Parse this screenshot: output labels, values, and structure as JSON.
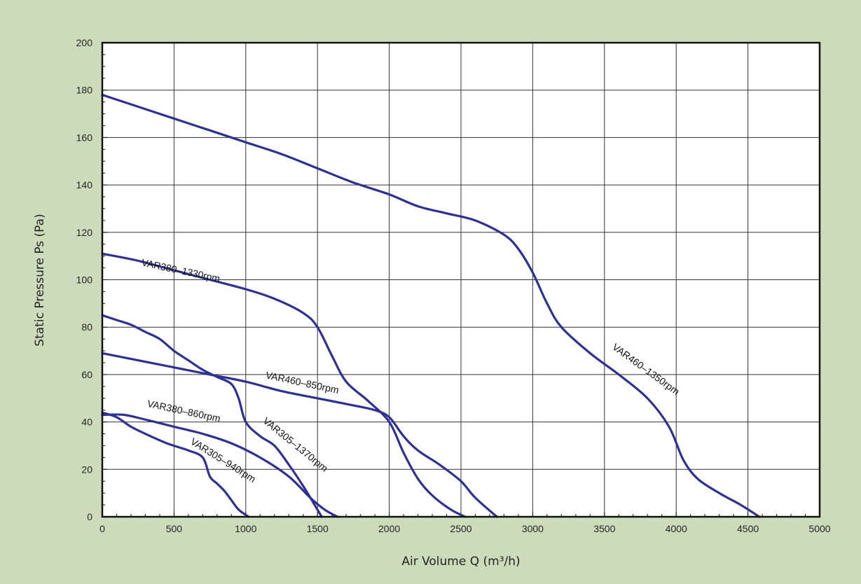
{
  "chart_data": {
    "type": "line",
    "title": "",
    "xlabel": "Air Volume Q (m³/h)",
    "ylabel": "Static Pressure Ps (Pa)",
    "xlim": [
      0,
      5000
    ],
    "ylim": [
      0,
      200
    ],
    "x_ticks": [
      "0",
      "500",
      "1000",
      "1500",
      "2000",
      "2500",
      "3000",
      "3500",
      "4000",
      "4500",
      "5000"
    ],
    "y_ticks": [
      "0",
      "20",
      "40",
      "60",
      "80",
      "100",
      "120",
      "140",
      "160",
      "180",
      "200"
    ],
    "grid": true,
    "line_color": "#2e3092",
    "series": [
      {
        "name": "VAR460–1350rpm",
        "points": [
          [
            0,
            178
          ],
          [
            250,
            173
          ],
          [
            500,
            168
          ],
          [
            750,
            163
          ],
          [
            1000,
            158
          ],
          [
            1250,
            153
          ],
          [
            1500,
            147
          ],
          [
            1750,
            141
          ],
          [
            2000,
            136
          ],
          [
            2200,
            131
          ],
          [
            2400,
            128
          ],
          [
            2600,
            125
          ],
          [
            2800,
            119
          ],
          [
            2900,
            113
          ],
          [
            3000,
            103
          ],
          [
            3100,
            90
          ],
          [
            3200,
            80
          ],
          [
            3400,
            69
          ],
          [
            3600,
            60
          ],
          [
            3800,
            50
          ],
          [
            3950,
            38
          ],
          [
            4050,
            24
          ],
          [
            4150,
            16
          ],
          [
            4300,
            10
          ],
          [
            4450,
            5
          ],
          [
            4580,
            0
          ]
        ]
      },
      {
        "name": "VAR380–1330rpm",
        "points": [
          [
            0,
            111
          ],
          [
            250,
            108
          ],
          [
            500,
            104
          ],
          [
            750,
            100
          ],
          [
            1000,
            96
          ],
          [
            1200,
            92
          ],
          [
            1400,
            86
          ],
          [
            1500,
            80
          ],
          [
            1600,
            68
          ],
          [
            1700,
            57
          ],
          [
            1850,
            49
          ],
          [
            2000,
            40
          ],
          [
            2100,
            27
          ],
          [
            2200,
            16
          ],
          [
            2300,
            9
          ],
          [
            2430,
            3
          ],
          [
            2530,
            0
          ]
        ]
      },
      {
        "name": "VAR460–850rpm",
        "points": [
          [
            0,
            69
          ],
          [
            250,
            66
          ],
          [
            500,
            63
          ],
          [
            750,
            60
          ],
          [
            1000,
            57
          ],
          [
            1250,
            53
          ],
          [
            1500,
            50
          ],
          [
            1750,
            47
          ],
          [
            1900,
            45
          ],
          [
            2000,
            42
          ],
          [
            2100,
            34
          ],
          [
            2200,
            28
          ],
          [
            2350,
            22
          ],
          [
            2500,
            15
          ],
          [
            2600,
            8
          ],
          [
            2750,
            0
          ]
        ]
      },
      {
        "name": "VAR305–1370rpm",
        "points": [
          [
            0,
            85
          ],
          [
            100,
            83
          ],
          [
            200,
            81
          ],
          [
            300,
            78
          ],
          [
            400,
            75
          ],
          [
            500,
            70
          ],
          [
            600,
            66
          ],
          [
            700,
            62
          ],
          [
            800,
            59
          ],
          [
            900,
            56
          ],
          [
            950,
            50
          ],
          [
            1000,
            40
          ],
          [
            1100,
            34
          ],
          [
            1200,
            30
          ],
          [
            1300,
            22
          ],
          [
            1400,
            13
          ],
          [
            1480,
            5
          ],
          [
            1530,
            0
          ]
        ]
      },
      {
        "name": "VAR380–860rpm",
        "points": [
          [
            0,
            43
          ],
          [
            150,
            43
          ],
          [
            300,
            41
          ],
          [
            500,
            38
          ],
          [
            700,
            35
          ],
          [
            900,
            31
          ],
          [
            1100,
            25
          ],
          [
            1300,
            17
          ],
          [
            1450,
            8
          ],
          [
            1550,
            3
          ],
          [
            1640,
            0
          ]
        ]
      },
      {
        "name": "VAR305–940rpm",
        "points": [
          [
            0,
            44
          ],
          [
            100,
            42
          ],
          [
            200,
            38
          ],
          [
            300,
            35
          ],
          [
            450,
            31
          ],
          [
            600,
            28
          ],
          [
            700,
            25
          ],
          [
            750,
            17
          ],
          [
            800,
            14
          ],
          [
            850,
            11
          ],
          [
            900,
            7
          ],
          [
            950,
            3
          ],
          [
            1020,
            0
          ]
        ]
      }
    ],
    "annotations": [
      {
        "text": "VAR380–1330rpm",
        "series": 1
      },
      {
        "text": "VAR460–850rpm",
        "series": 2
      },
      {
        "text": "VAR380–860rpm",
        "series": 4
      },
      {
        "text": "VAR305–1370rpm",
        "series": 3
      },
      {
        "text": "VAR305–940rpm",
        "series": 5
      },
      {
        "text": "VAR460–1350rpm",
        "series": 0
      }
    ]
  }
}
